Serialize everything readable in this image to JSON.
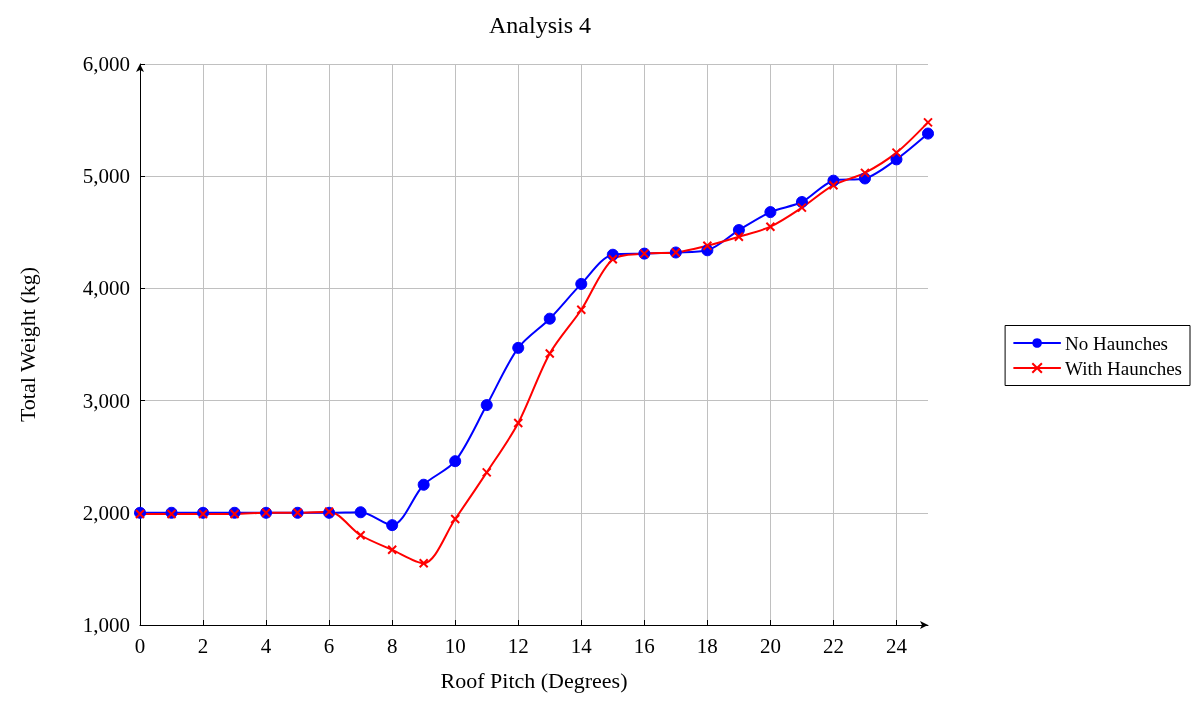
{
  "chart_data": {
    "type": "line",
    "title": "Analysis 4",
    "xlabel": "Roof Pitch (Degrees)",
    "ylabel": "Total Weight (kg)",
    "x": [
      0,
      1,
      2,
      3,
      4,
      5,
      6,
      7,
      8,
      9,
      10,
      11,
      12,
      13,
      14,
      15,
      16,
      17,
      18,
      19,
      20,
      21,
      22,
      23,
      24,
      25
    ],
    "series": [
      {
        "name": "No Haunches",
        "color": "#0000ff",
        "marker": "circle",
        "values": [
          2000,
          2000,
          2000,
          2000,
          2000,
          2000,
          2000,
          2005,
          1890,
          2250,
          2460,
          2960,
          3470,
          3730,
          4040,
          4300,
          4310,
          4320,
          4340,
          4520,
          4680,
          4770,
          4960,
          4980,
          5150,
          5380
        ]
      },
      {
        "name": "With Haunches",
        "color": "#ff0000",
        "marker": "cross",
        "values": [
          1990,
          1990,
          1990,
          1990,
          2000,
          2000,
          2010,
          1800,
          1670,
          1550,
          1945,
          2360,
          2800,
          3420,
          3810,
          4260,
          4310,
          4320,
          4380,
          4460,
          4550,
          4720,
          4920,
          5030,
          5210,
          5480
        ]
      }
    ],
    "xlim": [
      0,
      25
    ],
    "xticks": [
      0,
      2,
      4,
      6,
      8,
      10,
      12,
      14,
      16,
      18,
      20,
      22,
      24
    ],
    "ylim": [
      1000,
      6000
    ],
    "yticks": [
      {
        "value": 1000,
        "label": "1,000"
      },
      {
        "value": 2000,
        "label": "2,000"
      },
      {
        "value": 3000,
        "label": "3,000"
      },
      {
        "value": 4000,
        "label": "4,000"
      },
      {
        "value": 5000,
        "label": "5,000"
      },
      {
        "value": 6000,
        "label": "6,000"
      }
    ],
    "grid": true,
    "legend": "right",
    "line_style": "solid"
  }
}
